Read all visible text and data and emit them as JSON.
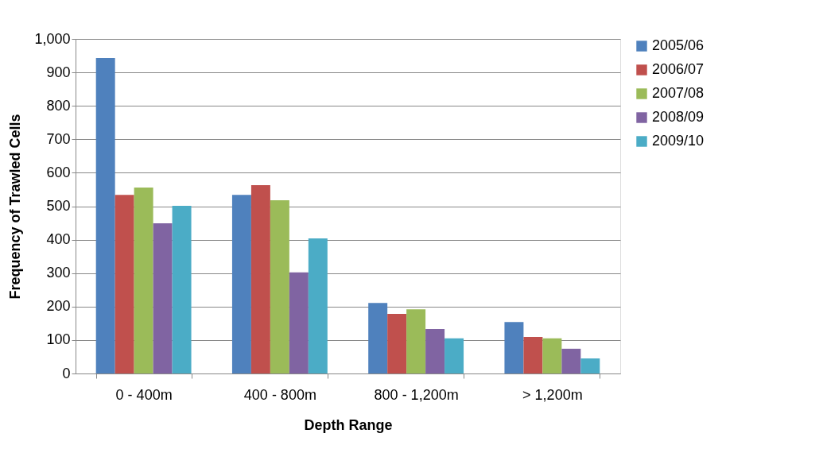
{
  "chart_data": {
    "type": "bar",
    "xlabel": "Depth Range",
    "ylabel": "Frequency of Trawled Cells",
    "categories": [
      "0 - 400m",
      "400 - 800m",
      "800 - 1,200m",
      "> 1,200m"
    ],
    "series": [
      {
        "name": "2005/06",
        "color": "#4f81bd",
        "values": [
          943,
          534,
          211,
          154
        ]
      },
      {
        "name": "2006/07",
        "color": "#c0504d",
        "values": [
          534,
          563,
          178,
          109
        ]
      },
      {
        "name": "2007/08",
        "color": "#9bbb59",
        "values": [
          556,
          518,
          192,
          105
        ]
      },
      {
        "name": "2008/09",
        "color": "#8064a2",
        "values": [
          449,
          302,
          133,
          74
        ]
      },
      {
        "name": "2009/10",
        "color": "#4bacc6",
        "values": [
          501,
          404,
          105,
          45
        ]
      }
    ],
    "ylim": [
      0,
      1000
    ],
    "yticks": [
      0,
      100,
      200,
      300,
      400,
      500,
      600,
      700,
      800,
      900,
      {
        "value": 1000,
        "label": "1,000"
      }
    ],
    "grid": "y",
    "legend": "right"
  }
}
